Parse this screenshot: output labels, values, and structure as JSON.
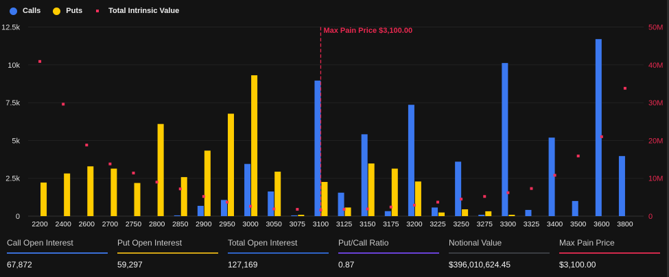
{
  "chart_data": {
    "type": "bar",
    "categories": [
      "2200",
      "2400",
      "2600",
      "2700",
      "2750",
      "2800",
      "2850",
      "2900",
      "2950",
      "3000",
      "3050",
      "3075",
      "3100",
      "3125",
      "3150",
      "3175",
      "3200",
      "3225",
      "3250",
      "3275",
      "3300",
      "3325",
      "3400",
      "3500",
      "3600",
      "3800"
    ],
    "series": [
      {
        "name": "Calls",
        "type": "bar",
        "axis": "left",
        "color": "#3b78f0",
        "values": [
          0,
          0,
          0,
          0,
          0,
          0,
          0.05,
          0.68,
          1.07,
          3.45,
          1.63,
          0.05,
          8.96,
          1.55,
          5.41,
          0.33,
          7.36,
          0.57,
          3.6,
          0.09,
          10.12,
          0.41,
          5.19,
          1.0,
          11.7,
          3.97
        ]
      },
      {
        "name": "Puts",
        "type": "bar",
        "axis": "left",
        "color": "#ffcc00",
        "values": [
          2.22,
          2.82,
          3.29,
          3.14,
          2.19,
          6.09,
          2.58,
          4.33,
          6.77,
          9.31,
          2.94,
          0.09,
          2.26,
          0.57,
          3.48,
          3.14,
          2.29,
          0.24,
          0.45,
          0.32,
          0.09,
          0,
          0,
          0,
          0,
          0
        ]
      },
      {
        "name": "Total Intrinsic Value",
        "type": "scatter",
        "axis": "right",
        "color": "#f0305a",
        "values": [
          40.9,
          29.6,
          18.8,
          13.8,
          11.4,
          9.0,
          7.2,
          5.2,
          3.7,
          2.6,
          1.9,
          1.8,
          1.6,
          1.8,
          1.9,
          2.4,
          2.9,
          3.7,
          4.5,
          5.2,
          6.2,
          7.3,
          10.8,
          15.9,
          21.0,
          33.8
        ]
      }
    ],
    "left_axis": {
      "unit": "thousands",
      "ylim": [
        0,
        12.5
      ],
      "ticks": [
        "0",
        "2.5k",
        "5k",
        "7.5k",
        "10k",
        "12.5k"
      ]
    },
    "right_axis": {
      "unit": "millions",
      "ylim": [
        0,
        50
      ],
      "ticks": [
        "0",
        "10M",
        "20M",
        "30M",
        "40M",
        "50M"
      ],
      "color": "#e8284f"
    },
    "annotation": {
      "category": "3100",
      "label": "Max Pain Price $3,100.00",
      "color": "#e8284f"
    },
    "legend_position": "top-left",
    "grid": true
  },
  "stats": [
    {
      "label": "Call Open Interest",
      "value": "67,872",
      "color": "#3a6fd8"
    },
    {
      "label": "Put Open Interest",
      "value": "59,297",
      "color": "#d4a514"
    },
    {
      "label": "Total Open Interest",
      "value": "127,169",
      "color": "#2f63c8"
    },
    {
      "label": "Put/Call Ratio",
      "value": "0.87",
      "color": "#6a42d8"
    },
    {
      "label": "Notional Value",
      "value": "$396,010,624.45",
      "color": "#3a3d42"
    },
    {
      "label": "Max Pain Price",
      "value": "$3,100.00",
      "color": "#d42a4c"
    }
  ]
}
